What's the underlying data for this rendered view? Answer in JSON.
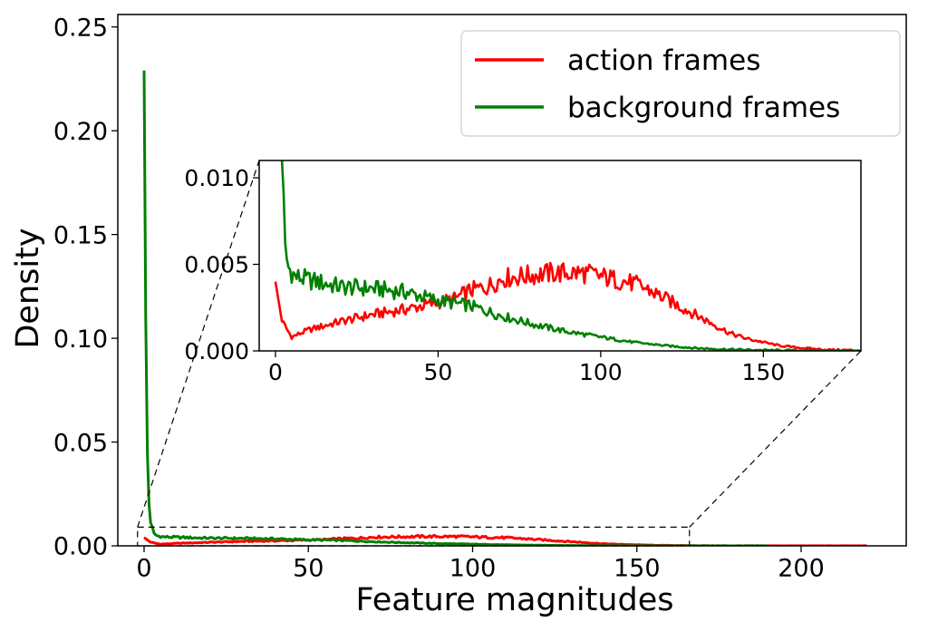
{
  "chart_data": {
    "type": "line",
    "xlabel": "Feature magnitudes",
    "ylabel": "Density",
    "xlim": [
      -8,
      232
    ],
    "ylim": [
      0,
      0.256
    ],
    "xticks": [
      0,
      50,
      100,
      150,
      200
    ],
    "yticks": [
      0.0,
      0.05,
      0.1,
      0.15,
      0.2,
      0.25
    ],
    "ytick_labels": [
      "0.00",
      "0.05",
      "0.10",
      "0.15",
      "0.20",
      "0.25"
    ],
    "grid": false,
    "legend_position": "top-right",
    "series": [
      {
        "name": "action frames",
        "color": "#ff0000",
        "points": [
          [
            0,
            0.004
          ],
          [
            2,
            0.0017
          ],
          [
            5,
            0.0008
          ],
          [
            10,
            0.0012
          ],
          [
            20,
            0.0017
          ],
          [
            30,
            0.0021
          ],
          [
            40,
            0.0024
          ],
          [
            50,
            0.0028
          ],
          [
            55,
            0.003
          ],
          [
            60,
            0.0035
          ],
          [
            65,
            0.0037
          ],
          [
            70,
            0.0042
          ],
          [
            75,
            0.0043
          ],
          [
            80,
            0.0044
          ],
          [
            85,
            0.0045
          ],
          [
            90,
            0.0045
          ],
          [
            95,
            0.0045
          ],
          [
            100,
            0.0043
          ],
          [
            105,
            0.0041
          ],
          [
            110,
            0.0039
          ],
          [
            115,
            0.0035
          ],
          [
            120,
            0.003
          ],
          [
            125,
            0.0025
          ],
          [
            130,
            0.002
          ],
          [
            135,
            0.0015
          ],
          [
            140,
            0.001
          ],
          [
            145,
            0.0007
          ],
          [
            150,
            0.0005
          ],
          [
            155,
            0.0003
          ],
          [
            160,
            0.0002
          ],
          [
            165,
            0.00012
          ],
          [
            170,
            6e-05
          ],
          [
            180,
            3e-05
          ],
          [
            200,
            1e-05
          ],
          [
            220,
            0.0
          ]
        ]
      },
      {
        "name": "background frames",
        "color": "#008000",
        "points": [
          [
            0,
            0.229
          ],
          [
            0.5,
            0.11
          ],
          [
            1,
            0.045
          ],
          [
            1.5,
            0.02
          ],
          [
            2,
            0.011
          ],
          [
            3,
            0.0058
          ],
          [
            4,
            0.0048
          ],
          [
            6,
            0.0043
          ],
          [
            10,
            0.0041
          ],
          [
            20,
            0.0037
          ],
          [
            30,
            0.0036
          ],
          [
            40,
            0.0034
          ],
          [
            50,
            0.0029
          ],
          [
            60,
            0.0026
          ],
          [
            70,
            0.002
          ],
          [
            80,
            0.0015
          ],
          [
            90,
            0.0011
          ],
          [
            100,
            0.0008
          ],
          [
            110,
            0.0005
          ],
          [
            120,
            0.0003
          ],
          [
            130,
            0.00015
          ],
          [
            140,
            8e-05
          ],
          [
            150,
            4e-05
          ],
          [
            160,
            2e-05
          ],
          [
            170,
            1e-05
          ],
          [
            190,
            0.0
          ]
        ]
      }
    ],
    "inset": {
      "xlim": [
        -5,
        180
      ],
      "ylim": [
        0,
        0.011
      ],
      "xticks": [
        0,
        50,
        100,
        150
      ],
      "yticks": [
        0.0,
        0.005,
        0.01
      ],
      "ytick_labels": [
        "0.000",
        "0.005",
        "0.010"
      ],
      "zoom_region": {
        "x": [
          -2,
          166
        ],
        "y": [
          0,
          0.009
        ]
      }
    }
  }
}
